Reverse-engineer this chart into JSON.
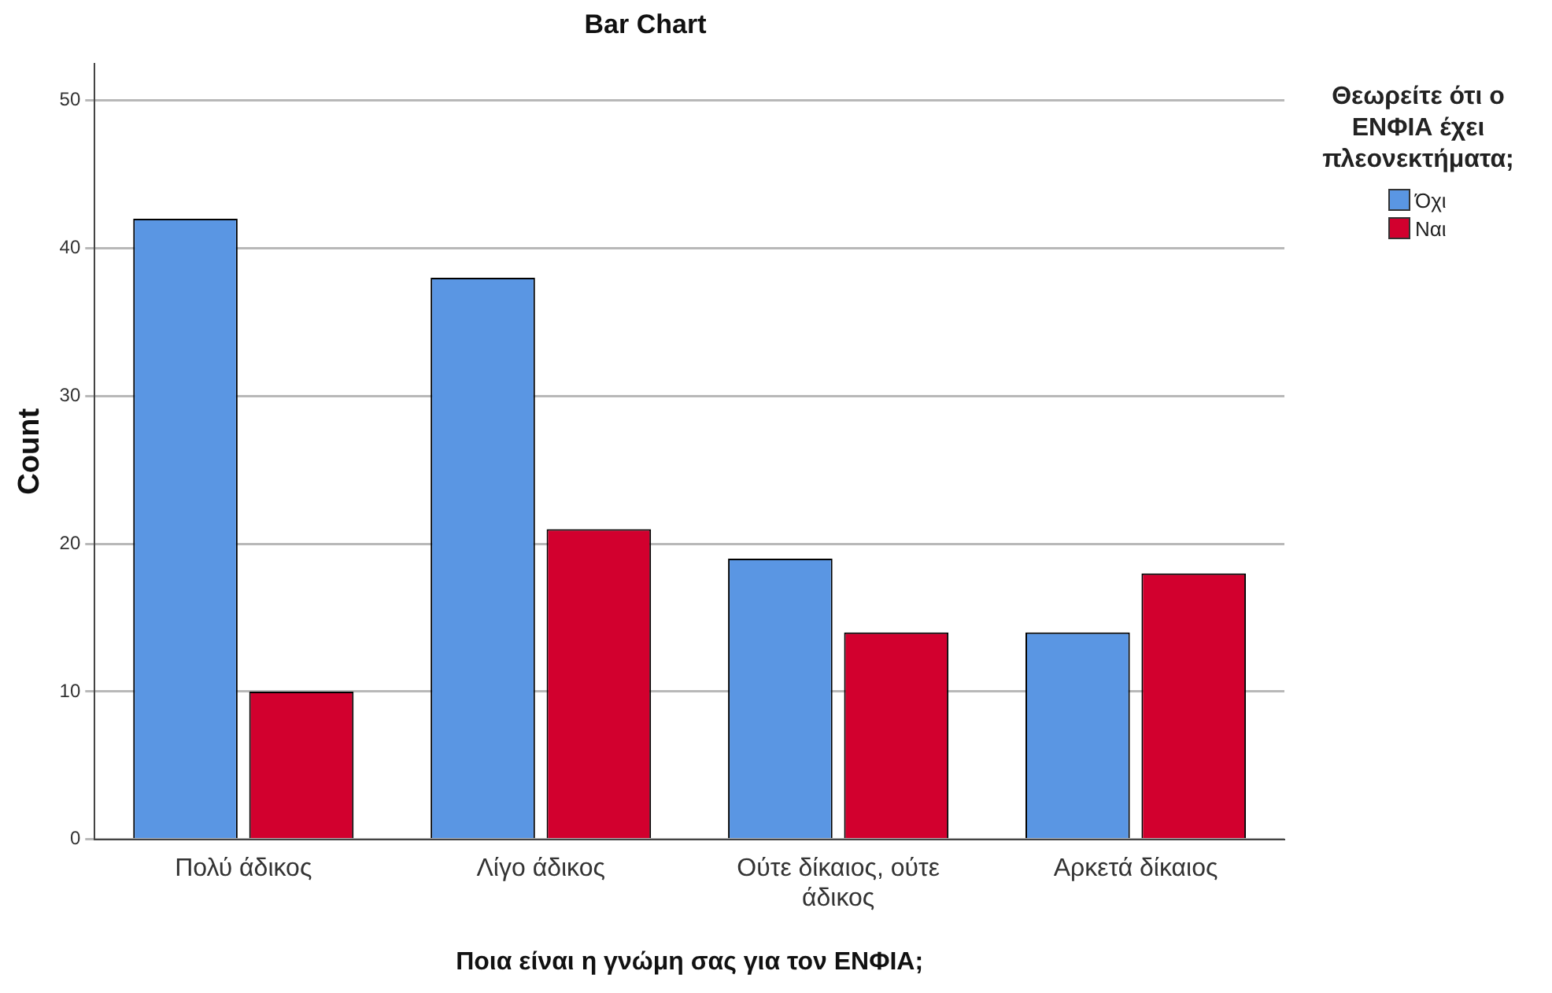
{
  "chart_data": {
    "type": "bar",
    "title": "Bar Chart",
    "xlabel": "Ποια είναι η γνώμη σας για τον ΕΝΦΙΑ;",
    "ylabel": "Count",
    "legend_title": "Θεωρείτε ότι ο ΕΝΦΙΑ έχει πλεονεκτήματα;",
    "categories": [
      "Πολύ άδικος",
      "Λίγο άδικος",
      "Ούτε δίκαιος, ούτε άδικος",
      "Αρκετά δίκαιος"
    ],
    "series": [
      {
        "name": "Όχι",
        "color": "#5a96e3",
        "values": [
          42,
          38,
          19,
          14
        ]
      },
      {
        "name": "Ναι",
        "color": "#d2002e",
        "values": [
          10,
          21,
          14,
          18
        ]
      }
    ],
    "ylim": [
      0,
      52.5
    ],
    "yticks": [
      0,
      10,
      20,
      30,
      40,
      50
    ],
    "grid": "y",
    "legend": "top right"
  }
}
